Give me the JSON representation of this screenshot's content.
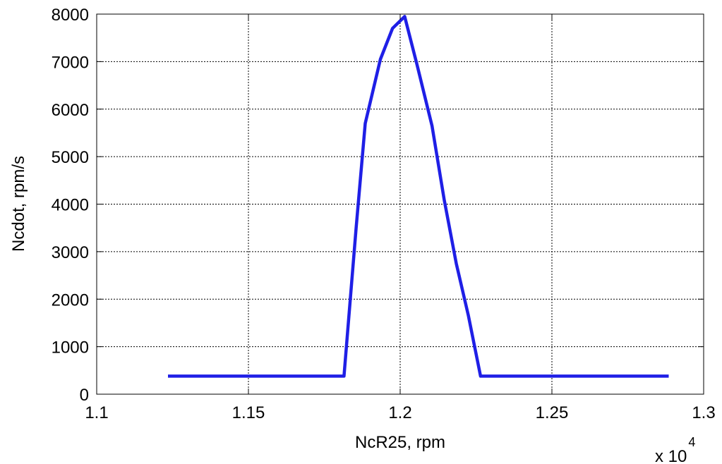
{
  "chart_data": {
    "type": "line",
    "title": "",
    "xlabel": "NcR25, rpm",
    "ylabel": "Ncdot, rpm/s",
    "x_exponent_label": {
      "base": "x 10",
      "exponent": "4"
    },
    "xlim": [
      1.1,
      1.3
    ],
    "ylim": [
      0,
      8000
    ],
    "x_ticks": [
      1.1,
      1.15,
      1.2,
      1.25,
      1.3
    ],
    "x_tick_labels": [
      "1.1",
      "1.15",
      "1.2",
      "1.25",
      "1.3"
    ],
    "y_ticks": [
      0,
      1000,
      2000,
      3000,
      4000,
      5000,
      6000,
      7000,
      8000
    ],
    "y_tick_labels": [
      "0",
      "1000",
      "2000",
      "3000",
      "4000",
      "5000",
      "6000",
      "7000",
      "8000"
    ],
    "grid": true,
    "series": [
      {
        "color": "#1f1fe6",
        "x": [
          1.1235,
          1.1815,
          1.1855,
          1.1885,
          1.1935,
          1.1975,
          1.2015,
          1.2055,
          1.2105,
          1.2145,
          1.2185,
          1.2225,
          1.2265,
          1.2885
        ],
        "y": [
          380,
          380,
          3500,
          5700,
          7050,
          7700,
          7950,
          6950,
          5650,
          4100,
          2750,
          1650,
          380,
          380
        ]
      }
    ]
  }
}
